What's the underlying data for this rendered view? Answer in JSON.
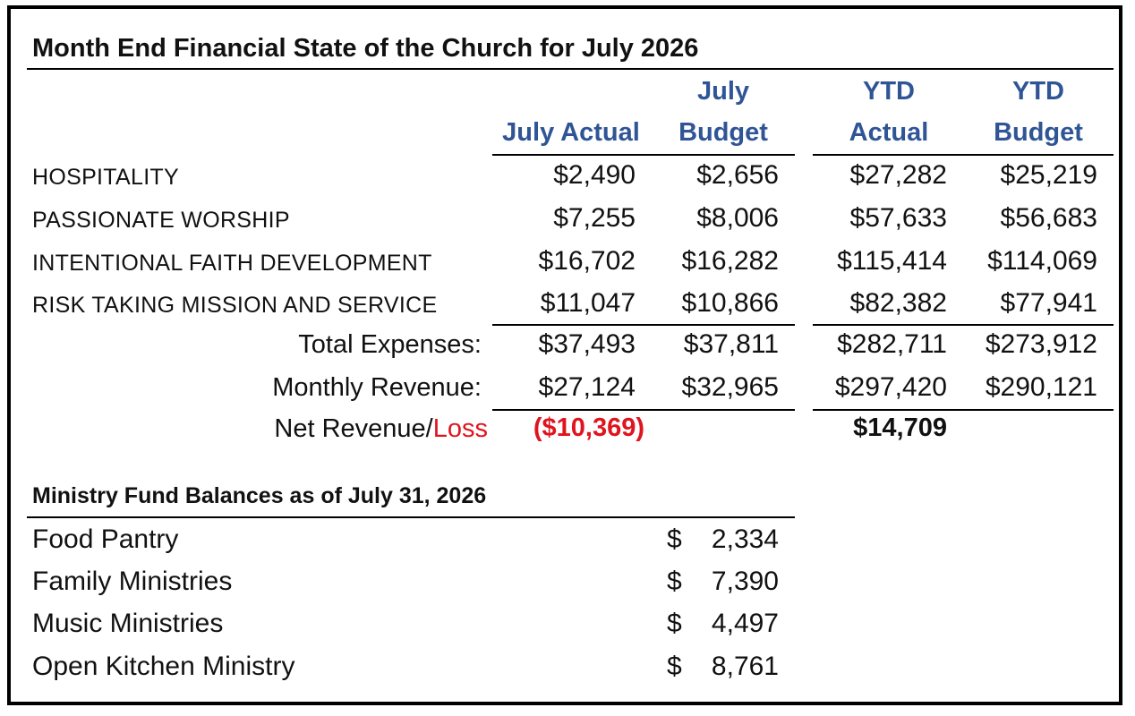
{
  "title": "Month End Financial State of the Church for July 2026",
  "columns": [
    {
      "line1": "",
      "line2": "July Actual"
    },
    {
      "line1": "July",
      "line2": "Budget"
    },
    {
      "line1": "YTD",
      "line2": "Actual"
    },
    {
      "line1": "YTD",
      "line2": "Budget"
    }
  ],
  "rows": [
    {
      "label": "HOSPITALITY",
      "values": [
        "$2,490",
        "$2,656",
        "$27,282",
        "$25,219"
      ]
    },
    {
      "label": "PASSIONATE WORSHIP",
      "values": [
        "$7,255",
        "$8,006",
        "$57,633",
        "$56,683"
      ]
    },
    {
      "label": "INTENTIONAL FAITH DEVELOPMENT",
      "values": [
        "$16,702",
        "$16,282",
        "$115,414",
        "$114,069"
      ]
    },
    {
      "label": "RISK TAKING MISSION AND SERVICE",
      "values": [
        "$11,047",
        "$10,866",
        "$82,382",
        "$77,941"
      ]
    }
  ],
  "totals": [
    {
      "label": "Total Expenses:",
      "values": [
        "$37,493",
        "$37,811",
        "$282,711",
        "$273,912"
      ]
    },
    {
      "label": "Monthly Revenue:",
      "values": [
        "$27,124",
        "$32,965",
        "$297,420",
        "$290,121"
      ]
    }
  ],
  "net": {
    "label_part1": "Net Revenue/",
    "label_part2": "Loss",
    "july_actual": "($10,369)",
    "ytd_actual": "$14,709"
  },
  "funds": {
    "title": "Ministry Fund Balances as of July 31, 2026",
    "currency_symbol": "$",
    "items": [
      {
        "name": "Food Pantry",
        "amount": "2,334"
      },
      {
        "name": "Family Ministries",
        "amount": "7,390"
      },
      {
        "name": "Music Ministries",
        "amount": "4,497"
      },
      {
        "name": "Open Kitchen Ministry",
        "amount": "8,761"
      }
    ]
  },
  "colors": {
    "header_blue": "#2f5596",
    "loss_red": "#e0141e"
  }
}
